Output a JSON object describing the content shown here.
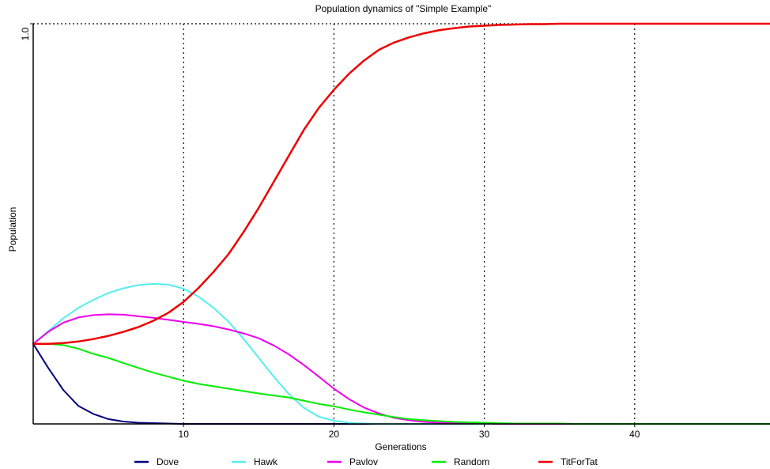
{
  "chart_data": {
    "type": "line",
    "title": "Population dynamics of \"Simple Example\"",
    "xlabel": "Generations",
    "ylabel": "Population",
    "xlim": [
      0,
      49
    ],
    "ylim": [
      0,
      1.0
    ],
    "x_ticks": [
      10,
      20,
      30,
      40
    ],
    "x_tick_labels": [
      "10",
      "20",
      "30",
      "40"
    ],
    "y_ticks": [
      1.0
    ],
    "y_tick_labels": [
      "1.0"
    ],
    "grid": "vertical dotted",
    "legend_position": "bottom",
    "x": [
      0,
      1,
      2,
      3,
      4,
      5,
      6,
      7,
      8,
      9,
      10,
      11,
      12,
      13,
      14,
      15,
      16,
      17,
      18,
      19,
      20,
      21,
      22,
      23,
      24,
      25,
      26,
      27,
      28,
      29,
      30,
      31,
      32,
      33,
      34,
      35,
      36,
      37,
      38,
      39,
      40,
      41,
      42,
      43,
      44,
      45,
      46,
      47,
      48,
      49
    ],
    "series": [
      {
        "name": "Dove",
        "color": "#00007f",
        "values": [
          0.2,
          0.14,
          0.085,
          0.045,
          0.025,
          0.012,
          0.006,
          0.003,
          0.002,
          0.001,
          0,
          0,
          0,
          0,
          0,
          0,
          0,
          0,
          0,
          0,
          0,
          0,
          0,
          0,
          0,
          0,
          0,
          0,
          0,
          0,
          0,
          0,
          0,
          0,
          0,
          0,
          0,
          0,
          0,
          0,
          0,
          0,
          0,
          0,
          0,
          0,
          0,
          0,
          0,
          0
        ]
      },
      {
        "name": "Hawk",
        "color": "#55eeee",
        "values": [
          0.2,
          0.232,
          0.264,
          0.29,
          0.31,
          0.327,
          0.339,
          0.347,
          0.35,
          0.348,
          0.338,
          0.318,
          0.29,
          0.255,
          0.212,
          0.165,
          0.118,
          0.075,
          0.04,
          0.018,
          0.008,
          0.003,
          0.001,
          0,
          0,
          0,
          0,
          0,
          0,
          0,
          0,
          0,
          0,
          0,
          0,
          0,
          0,
          0,
          0,
          0,
          0,
          0,
          0,
          0,
          0,
          0,
          0,
          0,
          0,
          0
        ]
      },
      {
        "name": "Pavlov",
        "color": "#ee00ee",
        "values": [
          0.2,
          0.23,
          0.253,
          0.266,
          0.272,
          0.274,
          0.273,
          0.269,
          0.265,
          0.26,
          0.255,
          0.25,
          0.244,
          0.236,
          0.226,
          0.214,
          0.196,
          0.174,
          0.147,
          0.118,
          0.088,
          0.062,
          0.041,
          0.026,
          0.015,
          0.009,
          0.005,
          0.003,
          0.002,
          0.001,
          0.001,
          0,
          0,
          0,
          0,
          0,
          0,
          0,
          0,
          0,
          0,
          0,
          0,
          0,
          0,
          0,
          0,
          0,
          0,
          0
        ]
      },
      {
        "name": "Random",
        "color": "#00ee00",
        "values": [
          0.2,
          0.2,
          0.197,
          0.188,
          0.175,
          0.165,
          0.152,
          0.14,
          0.128,
          0.118,
          0.108,
          0.1,
          0.094,
          0.088,
          0.082,
          0.076,
          0.071,
          0.066,
          0.058,
          0.05,
          0.044,
          0.036,
          0.029,
          0.023,
          0.017,
          0.012,
          0.009,
          0.007,
          0.005,
          0.004,
          0.003,
          0.002,
          0.001,
          0.001,
          0.001,
          0.001,
          0,
          0,
          0,
          0,
          0,
          0,
          0,
          0,
          0,
          0,
          0,
          0,
          0,
          0
        ]
      },
      {
        "name": "TitForTat",
        "color": "#ee0000",
        "values": [
          0.2,
          0.2,
          0.202,
          0.206,
          0.212,
          0.22,
          0.23,
          0.242,
          0.258,
          0.278,
          0.305,
          0.34,
          0.38,
          0.425,
          0.48,
          0.54,
          0.605,
          0.67,
          0.735,
          0.79,
          0.835,
          0.875,
          0.908,
          0.935,
          0.953,
          0.966,
          0.976,
          0.984,
          0.989,
          0.993,
          0.995,
          0.997,
          0.998,
          0.999,
          0.999,
          1.0,
          1.0,
          1.0,
          1.0,
          1.0,
          1.0,
          1.0,
          1.0,
          1.0,
          1.0,
          1.0,
          1.0,
          1.0,
          1.0,
          1.0
        ]
      }
    ]
  }
}
